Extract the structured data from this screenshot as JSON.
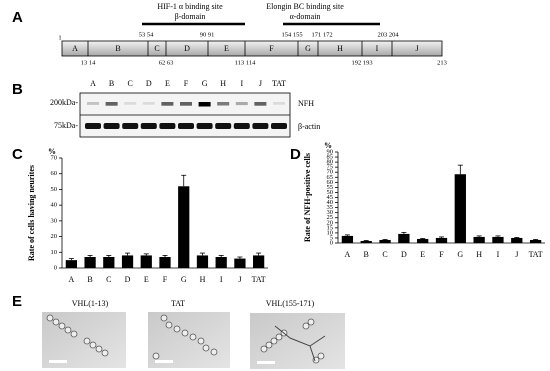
{
  "panels": {
    "a": {
      "label": "A",
      "domains": [
        {
          "site": "HIF-1 α binding site",
          "name": "β-domain"
        },
        {
          "site": "Elongin BC binding site",
          "name": "α-domain"
        }
      ],
      "segments": [
        "A",
        "B",
        "C",
        "D",
        "E",
        "F",
        "G",
        "H",
        "I",
        "J"
      ],
      "residues_top": [
        "1",
        "53 54",
        "90 91",
        "154 155",
        "171 172",
        "203 204"
      ],
      "residues_bottom": [
        "13 14",
        "62 63",
        "113 114",
        "192 193",
        "213"
      ]
    },
    "b": {
      "label": "B",
      "lanes": [
        "A",
        "B",
        "C",
        "D",
        "E",
        "F",
        "G",
        "H",
        "I",
        "J",
        "TAT"
      ],
      "markers": [
        "200kDa-",
        "75kDa-"
      ],
      "bands": [
        "NFH",
        "β-actin"
      ]
    },
    "e": {
      "label": "E",
      "images": [
        "VHL(1-13)",
        "TAT",
        "VHL(155-171)"
      ]
    }
  },
  "chart_data": [
    {
      "type": "bar",
      "panel_label": "C",
      "y_unit": "%",
      "ylabel": "Rate of cells having neurites",
      "categories": [
        "A",
        "B",
        "C",
        "D",
        "E",
        "F",
        "G",
        "H",
        "I",
        "J",
        "TAT"
      ],
      "values": [
        5,
        7,
        7,
        8,
        8,
        7,
        52,
        8,
        7,
        6,
        8
      ],
      "errors": [
        1,
        1,
        1,
        1.5,
        1,
        1,
        7,
        1.5,
        1,
        1,
        1.5
      ],
      "color": "#000000",
      "ylim": [
        0,
        70
      ],
      "yticks": [
        0,
        10,
        20,
        30,
        40,
        50,
        60,
        70
      ]
    },
    {
      "type": "bar",
      "panel_label": "D",
      "y_unit": "%",
      "ylabel": "Rate of NFH-positive cells",
      "categories": [
        "A",
        "B",
        "C",
        "D",
        "E",
        "F",
        "G",
        "H",
        "I",
        "J",
        "TAT"
      ],
      "values": [
        7,
        2,
        3,
        9,
        4,
        5,
        68,
        6,
        6,
        5,
        3
      ],
      "errors": [
        1,
        0.5,
        0.5,
        1.5,
        0.5,
        1,
        9,
        1,
        1,
        0.5,
        0.5
      ],
      "color": "#000000",
      "ylim": [
        0,
        90
      ],
      "yticks": [
        0,
        5,
        10,
        15,
        20,
        25,
        30,
        35,
        40,
        45,
        50,
        55,
        60,
        65,
        70,
        75,
        80,
        85,
        90
      ]
    }
  ]
}
